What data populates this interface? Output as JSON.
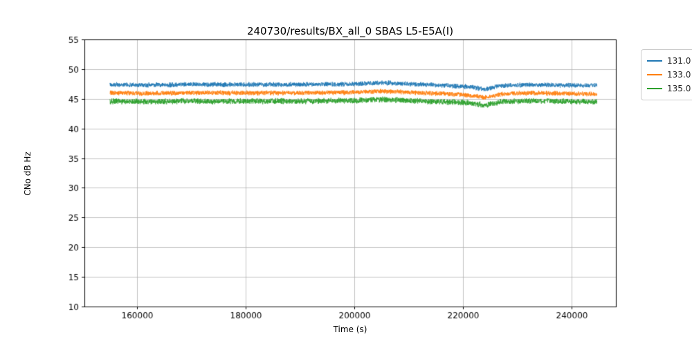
{
  "chart_data": {
    "type": "line",
    "title": "240730/results/BX_all_0 SBAS L5-E5A(I)",
    "xlabel": "Time (s)",
    "ylabel": "CNo dB Hz",
    "xlim": [
      150300,
      248100
    ],
    "ylim": [
      10,
      55
    ],
    "xticks": [
      160000,
      180000,
      200000,
      220000,
      240000
    ],
    "yticks": [
      10,
      15,
      20,
      25,
      30,
      35,
      40,
      45,
      50,
      55
    ],
    "grid": true,
    "grid_color": "#b0b0b0",
    "legend_position": "outside-top-right",
    "x_data_range": [
      155000,
      244600
    ],
    "profile_x": [
      155000,
      160000,
      170000,
      180000,
      190000,
      200000,
      205000,
      210000,
      215000,
      220000,
      222000,
      224000,
      227000,
      232000,
      238000,
      244600
    ],
    "series": [
      {
        "name": "131.0",
        "color": "#1f77b4",
        "noise_amplitude": 0.45,
        "profile_y": [
          47.4,
          47.3,
          47.4,
          47.4,
          47.4,
          47.5,
          47.7,
          47.5,
          47.3,
          47.1,
          46.9,
          46.6,
          47.2,
          47.4,
          47.3,
          47.2
        ]
      },
      {
        "name": "133.0",
        "color": "#ff7f0e",
        "noise_amplitude": 0.45,
        "profile_y": [
          46.0,
          45.9,
          46.0,
          46.0,
          46.0,
          46.1,
          46.3,
          46.1,
          45.9,
          45.7,
          45.5,
          45.2,
          45.8,
          46.0,
          45.9,
          45.8
        ]
      },
      {
        "name": "135.0",
        "color": "#2ca02c",
        "noise_amplitude": 0.55,
        "profile_y": [
          44.6,
          44.5,
          44.6,
          44.6,
          44.6,
          44.7,
          44.9,
          44.7,
          44.5,
          44.4,
          44.2,
          43.9,
          44.5,
          44.7,
          44.6,
          44.5
        ]
      }
    ]
  }
}
